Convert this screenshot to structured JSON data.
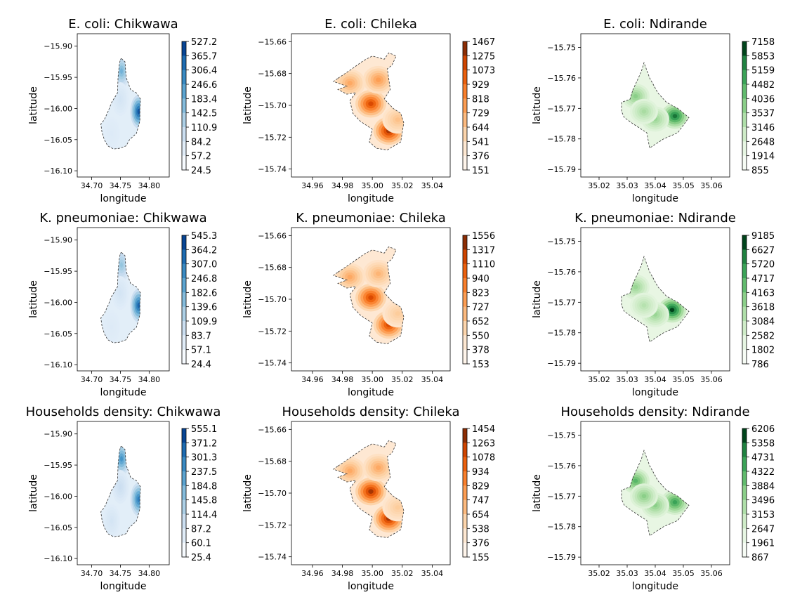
{
  "figure": {
    "title": ""
  },
  "chart_data": [
    {
      "type": "heatmap",
      "title": "E. coli: Chikwawa",
      "xlabel": "longitude",
      "ylabel": "latitude",
      "colormap": "Blues",
      "region": "Chikwawa",
      "xticks": [
        "34.70",
        "34.75",
        "34.80"
      ],
      "xtick_values": [
        34.7,
        34.75,
        34.8
      ],
      "xlim": [
        34.675,
        34.835
      ],
      "yticks": [
        "−15.90",
        "−15.95",
        "−16.00",
        "−16.05",
        "−16.10"
      ],
      "ytick_values": [
        -15.9,
        -15.95,
        -16.0,
        -16.05,
        -16.1
      ],
      "ylim": [
        -16.11,
        -15.88
      ],
      "colorbar_levels": [
        "527.2",
        "365.7",
        "306.4",
        "246.6",
        "183.4",
        "142.5",
        "110.9",
        "84.2",
        "57.2",
        "24.5"
      ],
      "hotspots": [
        {
          "lon": 34.752,
          "lat": -15.94,
          "level": 0.55
        },
        {
          "lon": 34.782,
          "lat": -16.005,
          "level": 0.95
        },
        {
          "lon": 34.75,
          "lat": -15.985,
          "level": 0.2
        },
        {
          "lon": 34.735,
          "lat": -16.04,
          "level": 0.15
        }
      ]
    },
    {
      "type": "heatmap",
      "title": "E. coli: Chileka",
      "xlabel": "longitude",
      "ylabel": "latitude",
      "colormap": "Oranges",
      "region": "Chileka",
      "xticks": [
        "34.96",
        "34.98",
        "35.00",
        "35.02",
        "35.04"
      ],
      "xtick_values": [
        34.96,
        34.98,
        35.0,
        35.02,
        35.04
      ],
      "xlim": [
        34.946,
        35.052
      ],
      "yticks": [
        "−15.66",
        "−15.68",
        "−15.70",
        "−15.72",
        "−15.74"
      ],
      "ytick_values": [
        -15.66,
        -15.68,
        -15.7,
        -15.72,
        -15.74
      ],
      "ylim": [
        -15.745,
        -15.655
      ],
      "colorbar_levels": [
        "1467",
        "1275",
        "1073",
        "929",
        "818",
        "729",
        "644",
        "541",
        "376",
        "151"
      ],
      "hotspots": [
        {
          "lon": 35.011,
          "lat": -15.716,
          "level": 0.95
        },
        {
          "lon": 34.999,
          "lat": -15.699,
          "level": 0.85
        },
        {
          "lon": 35.004,
          "lat": -15.684,
          "level": 0.5
        },
        {
          "lon": 34.985,
          "lat": -15.686,
          "level": 0.45
        },
        {
          "lon": 35.017,
          "lat": -15.709,
          "level": 0.35
        }
      ]
    },
    {
      "type": "heatmap",
      "title": "E. coli: Ndirande",
      "xlabel": "longitude",
      "ylabel": "latitude",
      "colormap": "Greens",
      "region": "Ndirande",
      "xticks": [
        "35.02",
        "35.03",
        "35.04",
        "35.05",
        "35.06"
      ],
      "xtick_values": [
        35.02,
        35.03,
        35.04,
        35.05,
        35.06
      ],
      "xlim": [
        35.0135,
        35.0665
      ],
      "yticks": [
        "−15.75",
        "−15.76",
        "−15.77",
        "−15.78",
        "−15.79"
      ],
      "ytick_values": [
        -15.75,
        -15.76,
        -15.77,
        -15.78,
        -15.79
      ],
      "ylim": [
        -15.7925,
        -15.7455
      ],
      "colorbar_levels": [
        "7158",
        "5853",
        "5159",
        "4482",
        "4036",
        "3537",
        "3146",
        "2648",
        "1914",
        "855"
      ],
      "hotspots": [
        {
          "lon": 35.047,
          "lat": -15.7725,
          "level": 0.9
        },
        {
          "lon": 35.033,
          "lat": -15.766,
          "level": 0.5
        },
        {
          "lon": 35.04,
          "lat": -15.7735,
          "level": 0.45
        },
        {
          "lon": 35.036,
          "lat": -15.771,
          "level": 0.4
        }
      ]
    },
    {
      "type": "heatmap",
      "title": "K. pneumoniae: Chikwawa",
      "xlabel": "longitude",
      "ylabel": "latitude",
      "colormap": "Blues",
      "region": "Chikwawa",
      "xticks": [
        "34.70",
        "34.75",
        "34.80"
      ],
      "xtick_values": [
        34.7,
        34.75,
        34.8
      ],
      "xlim": [
        34.675,
        34.835
      ],
      "yticks": [
        "−15.90",
        "−15.95",
        "−16.00",
        "−16.05",
        "−16.10"
      ],
      "ytick_values": [
        -15.9,
        -15.95,
        -16.0,
        -16.05,
        -16.1
      ],
      "ylim": [
        -16.11,
        -15.88
      ],
      "colorbar_levels": [
        "545.3",
        "364.2",
        "307.0",
        "246.8",
        "182.6",
        "139.6",
        "109.9",
        "83.7",
        "57.1",
        "24.4"
      ],
      "hotspots": [
        {
          "lon": 34.752,
          "lat": -15.94,
          "level": 0.45
        },
        {
          "lon": 34.782,
          "lat": -16.005,
          "level": 0.9
        },
        {
          "lon": 34.75,
          "lat": -15.985,
          "level": 0.2
        },
        {
          "lon": 34.735,
          "lat": -16.04,
          "level": 0.15
        }
      ]
    },
    {
      "type": "heatmap",
      "title": "K. pneumoniae: Chileka",
      "xlabel": "longitude",
      "ylabel": "latitude",
      "colormap": "Oranges",
      "region": "Chileka",
      "xticks": [
        "34.96",
        "34.98",
        "35.00",
        "35.02",
        "35.04"
      ],
      "xtick_values": [
        34.96,
        34.98,
        35.0,
        35.02,
        35.04
      ],
      "xlim": [
        34.946,
        35.052
      ],
      "yticks": [
        "−15.66",
        "−15.68",
        "−15.70",
        "−15.72",
        "−15.74"
      ],
      "ytick_values": [
        -15.66,
        -15.68,
        -15.7,
        -15.72,
        -15.74
      ],
      "ylim": [
        -15.745,
        -15.655
      ],
      "colorbar_levels": [
        "1556",
        "1317",
        "1110",
        "940",
        "823",
        "727",
        "652",
        "550",
        "378",
        "153"
      ],
      "hotspots": [
        {
          "lon": 35.011,
          "lat": -15.716,
          "level": 0.85
        },
        {
          "lon": 34.999,
          "lat": -15.699,
          "level": 0.85
        },
        {
          "lon": 35.004,
          "lat": -15.684,
          "level": 0.4
        },
        {
          "lon": 34.985,
          "lat": -15.686,
          "level": 0.45
        },
        {
          "lon": 35.017,
          "lat": -15.709,
          "level": 0.3
        }
      ]
    },
    {
      "type": "heatmap",
      "title": "K. pneumoniae: Ndirande",
      "xlabel": "longitude",
      "ylabel": "latitude",
      "colormap": "Greens",
      "region": "Ndirande",
      "xticks": [
        "35.02",
        "35.03",
        "35.04",
        "35.05",
        "35.06"
      ],
      "xtick_values": [
        35.02,
        35.03,
        35.04,
        35.05,
        35.06
      ],
      "xlim": [
        35.0135,
        35.0665
      ],
      "yticks": [
        "−15.75",
        "−15.76",
        "−15.77",
        "−15.78",
        "−15.79"
      ],
      "ytick_values": [
        -15.75,
        -15.76,
        -15.77,
        -15.78,
        -15.79
      ],
      "ylim": [
        -15.7925,
        -15.7455
      ],
      "colorbar_levels": [
        "9185",
        "6627",
        "5720",
        "4717",
        "4163",
        "3618",
        "3084",
        "2582",
        "1802",
        "786"
      ],
      "hotspots": [
        {
          "lon": 35.046,
          "lat": -15.7725,
          "level": 1.0
        },
        {
          "lon": 35.033,
          "lat": -15.765,
          "level": 0.45
        },
        {
          "lon": 35.04,
          "lat": -15.774,
          "level": 0.45
        },
        {
          "lon": 35.036,
          "lat": -15.771,
          "level": 0.35
        }
      ]
    },
    {
      "type": "heatmap",
      "title": "Households density: Chikwawa",
      "xlabel": "longitude",
      "ylabel": "latitude",
      "colormap": "Blues",
      "region": "Chikwawa",
      "xticks": [
        "34.70",
        "34.75",
        "34.80"
      ],
      "xtick_values": [
        34.7,
        34.75,
        34.8
      ],
      "xlim": [
        34.675,
        34.835
      ],
      "yticks": [
        "−15.90",
        "−15.95",
        "−16.00",
        "−16.05",
        "−16.10"
      ],
      "ytick_values": [
        -15.9,
        -15.95,
        -16.0,
        -16.05,
        -16.1
      ],
      "ylim": [
        -16.11,
        -15.88
      ],
      "colorbar_levels": [
        "555.1",
        "371.2",
        "301.3",
        "237.5",
        "184.8",
        "145.8",
        "114.4",
        "87.2",
        "60.1",
        "25.4"
      ],
      "hotspots": [
        {
          "lon": 34.752,
          "lat": -15.94,
          "level": 0.7
        },
        {
          "lon": 34.782,
          "lat": -16.005,
          "level": 0.8
        },
        {
          "lon": 34.75,
          "lat": -15.985,
          "level": 0.25
        },
        {
          "lon": 34.735,
          "lat": -16.04,
          "level": 0.2
        }
      ]
    },
    {
      "type": "heatmap",
      "title": "Households density: Chileka",
      "xlabel": "longitude",
      "ylabel": "latitude",
      "colormap": "Oranges",
      "region": "Chileka",
      "xticks": [
        "34.96",
        "34.98",
        "35.00",
        "35.02",
        "35.04"
      ],
      "xtick_values": [
        34.96,
        34.98,
        35.0,
        35.02,
        35.04
      ],
      "xlim": [
        34.946,
        35.052
      ],
      "yticks": [
        "−15.66",
        "−15.68",
        "−15.70",
        "−15.72",
        "−15.74"
      ],
      "ytick_values": [
        -15.66,
        -15.68,
        -15.7,
        -15.72,
        -15.74
      ],
      "ylim": [
        -15.745,
        -15.655
      ],
      "colorbar_levels": [
        "1454",
        "1263",
        "1078",
        "934",
        "829",
        "747",
        "654",
        "538",
        "376",
        "155"
      ],
      "hotspots": [
        {
          "lon": 35.011,
          "lat": -15.716,
          "level": 0.95
        },
        {
          "lon": 34.999,
          "lat": -15.699,
          "level": 0.95
        },
        {
          "lon": 35.004,
          "lat": -15.684,
          "level": 0.45
        },
        {
          "lon": 34.985,
          "lat": -15.686,
          "level": 0.45
        },
        {
          "lon": 35.017,
          "lat": -15.709,
          "level": 0.3
        }
      ]
    },
    {
      "type": "heatmap",
      "title": "Households density: Ndirande",
      "xlabel": "longitude",
      "ylabel": "latitude",
      "colormap": "Greens",
      "region": "Ndirande",
      "xticks": [
        "35.02",
        "35.03",
        "35.04",
        "35.05",
        "35.06"
      ],
      "xtick_values": [
        35.02,
        35.03,
        35.04,
        35.05,
        35.06
      ],
      "xlim": [
        35.0135,
        35.0665
      ],
      "yticks": [
        "−15.75",
        "−15.76",
        "−15.77",
        "−15.78",
        "−15.79"
      ],
      "ytick_values": [
        -15.75,
        -15.76,
        -15.77,
        -15.78,
        -15.79
      ],
      "ylim": [
        -15.7925,
        -15.7455
      ],
      "colorbar_levels": [
        "6206",
        "5358",
        "4731",
        "4322",
        "3884",
        "3496",
        "3153",
        "2647",
        "1961",
        "867"
      ],
      "hotspots": [
        {
          "lon": 35.047,
          "lat": -15.772,
          "level": 0.75
        },
        {
          "lon": 35.033,
          "lat": -15.765,
          "level": 0.65
        },
        {
          "lon": 35.04,
          "lat": -15.773,
          "level": 0.5
        },
        {
          "lon": 35.036,
          "lat": -15.77,
          "level": 0.5
        }
      ]
    }
  ],
  "regions": {
    "Chikwawa": [
      [
        34.752,
        -15.92
      ],
      [
        34.758,
        -15.925
      ],
      [
        34.76,
        -15.95
      ],
      [
        34.768,
        -15.97
      ],
      [
        34.778,
        -15.975
      ],
      [
        34.785,
        -15.985
      ],
      [
        34.784,
        -16.0
      ],
      [
        34.784,
        -16.02
      ],
      [
        34.778,
        -16.04
      ],
      [
        34.766,
        -16.05
      ],
      [
        34.76,
        -16.06
      ],
      [
        34.748,
        -16.064
      ],
      [
        34.738,
        -16.065
      ],
      [
        34.728,
        -16.06
      ],
      [
        34.722,
        -16.05
      ],
      [
        34.718,
        -16.038
      ],
      [
        34.716,
        -16.025
      ],
      [
        34.722,
        -16.018
      ],
      [
        34.728,
        -16.006
      ],
      [
        34.735,
        -15.99
      ],
      [
        34.745,
        -15.975
      ],
      [
        34.746,
        -15.95
      ],
      [
        34.748,
        -15.93
      ],
      [
        34.75,
        -15.921
      ]
    ],
    "Chileka": [
      [
        34.977,
        -15.683
      ],
      [
        34.985,
        -15.678
      ],
      [
        34.994,
        -15.672
      ],
      [
        35.0,
        -15.669
      ],
      [
        35.008,
        -15.671
      ],
      [
        35.011,
        -15.667
      ],
      [
        35.016,
        -15.669
      ],
      [
        35.013,
        -15.675
      ],
      [
        35.01,
        -15.677
      ],
      [
        35.012,
        -15.69
      ],
      [
        35.008,
        -15.696
      ],
      [
        35.014,
        -15.702
      ],
      [
        35.019,
        -15.705
      ],
      [
        35.021,
        -15.711
      ],
      [
        35.019,
        -15.723
      ],
      [
        35.01,
        -15.728
      ],
      [
        35.003,
        -15.727
      ],
      [
        34.998,
        -15.723
      ],
      [
        35.0,
        -15.715
      ],
      [
        34.992,
        -15.71
      ],
      [
        34.987,
        -15.705
      ],
      [
        34.985,
        -15.697
      ],
      [
        34.989,
        -15.692
      ],
      [
        34.983,
        -15.693
      ],
      [
        34.977,
        -15.69
      ],
      [
        34.983,
        -15.688
      ],
      [
        34.974,
        -15.685
      ]
    ],
    "Ndirande": [
      [
        35.032,
        -15.764
      ],
      [
        35.035,
        -15.758
      ],
      [
        35.036,
        -15.755
      ],
      [
        35.038,
        -15.76
      ],
      [
        35.041,
        -15.765
      ],
      [
        35.044,
        -15.768
      ],
      [
        35.048,
        -15.77
      ],
      [
        35.052,
        -15.773
      ],
      [
        35.048,
        -15.778
      ],
      [
        35.043,
        -15.78
      ],
      [
        35.038,
        -15.783
      ],
      [
        35.037,
        -15.778
      ],
      [
        35.032,
        -15.775
      ],
      [
        35.029,
        -15.773
      ],
      [
        35.028,
        -15.771
      ],
      [
        35.028,
        -15.768
      ],
      [
        35.031,
        -15.767
      ]
    ]
  },
  "colormaps": {
    "Blues": [
      "#f7fbff",
      "#deebf7",
      "#c6dbef",
      "#9ecae1",
      "#6baed6",
      "#4292c6",
      "#2171b5",
      "#084594"
    ],
    "Oranges": [
      "#fff5eb",
      "#fee6ce",
      "#fdd0a2",
      "#fdae6b",
      "#fd8d3c",
      "#f16913",
      "#d94801",
      "#8c2d04"
    ],
    "Greens": [
      "#f7fcf5",
      "#e5f5e0",
      "#c7e9c0",
      "#a1d99b",
      "#74c476",
      "#41ab5d",
      "#238b45",
      "#00441b"
    ]
  }
}
